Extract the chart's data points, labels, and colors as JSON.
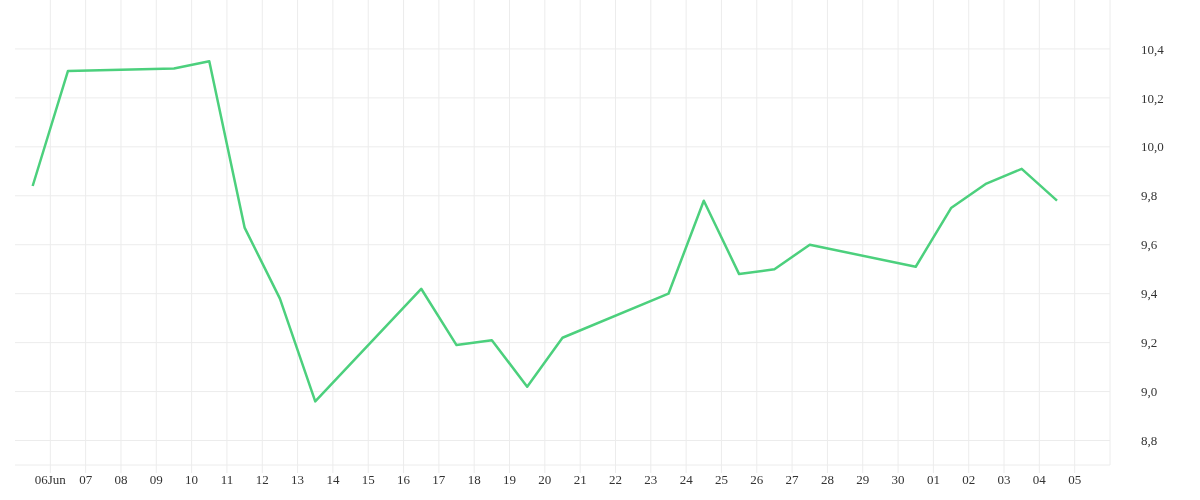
{
  "chart_data": {
    "type": "line",
    "x": [
      "--06-05T12:00",
      "--06-06T12:00",
      "--06-09T12:00",
      "--06-10T12:00",
      "--06-11T12:00",
      "--06-12T12:00",
      "--06-13T12:00",
      "--06-16T12:00",
      "--06-17T12:00",
      "--06-18T12:00",
      "--06-19T12:00",
      "--06-20T12:00",
      "--06-23T12:00",
      "--06-24T12:00",
      "--06-25T12:00",
      "--06-26T12:00",
      "--06-27T12:00",
      "--06-30T12:00",
      "--07-01T12:00",
      "--07-02T12:00",
      "--07-03T12:00",
      "--07-04T12:00"
    ],
    "series": [
      {
        "color": "#4cd07d",
        "values": [
          9.84,
          10.31,
          10.32,
          10.35,
          9.67,
          9.38,
          8.96,
          9.42,
          9.19,
          9.21,
          9.02,
          9.22,
          9.4,
          9.78,
          9.48,
          9.5,
          9.6,
          9.51,
          9.75,
          9.85,
          9.91,
          9.78
        ]
      }
    ],
    "xlim": [
      "--06-05",
      "--07-06"
    ],
    "xticks": [
      {
        "value": "--06-06",
        "label": "06Jun"
      },
      {
        "value": "--06-07",
        "label": "07"
      },
      {
        "value": "--06-08",
        "label": "08"
      },
      {
        "value": "--06-09",
        "label": "09"
      },
      {
        "value": "--06-10",
        "label": "10"
      },
      {
        "value": "--06-11",
        "label": "11"
      },
      {
        "value": "--06-12",
        "label": "12"
      },
      {
        "value": "--06-13",
        "label": "13"
      },
      {
        "value": "--06-14",
        "label": "14"
      },
      {
        "value": "--06-15",
        "label": "15"
      },
      {
        "value": "--06-16",
        "label": "16"
      },
      {
        "value": "--06-17",
        "label": "17"
      },
      {
        "value": "--06-18",
        "label": "18"
      },
      {
        "value": "--06-19",
        "label": "19"
      },
      {
        "value": "--06-20",
        "label": "20"
      },
      {
        "value": "--06-21",
        "label": "21"
      },
      {
        "value": "--06-22",
        "label": "22"
      },
      {
        "value": "--06-23",
        "label": "23"
      },
      {
        "value": "--06-24",
        "label": "24"
      },
      {
        "value": "--06-25",
        "label": "25"
      },
      {
        "value": "--06-26",
        "label": "26"
      },
      {
        "value": "--06-27",
        "label": "27"
      },
      {
        "value": "--06-28",
        "label": "28"
      },
      {
        "value": "--06-29",
        "label": "29"
      },
      {
        "value": "--06-30",
        "label": "30"
      },
      {
        "value": "--07-01",
        "label": "01"
      },
      {
        "value": "--07-02",
        "label": "02"
      },
      {
        "value": "--07-03",
        "label": "03"
      },
      {
        "value": "--07-04",
        "label": "04"
      },
      {
        "value": "--07-05",
        "label": "05"
      }
    ],
    "ylim": [
      8.7,
      10.6
    ],
    "yticks": [
      {
        "value": 8.8,
        "label": "8,8"
      },
      {
        "value": 9.0,
        "label": "9,0"
      },
      {
        "value": 9.2,
        "label": "9,2"
      },
      {
        "value": 9.4,
        "label": "9,4"
      },
      {
        "value": 9.6,
        "label": "9,6"
      },
      {
        "value": 9.8,
        "label": "9,8"
      },
      {
        "value": 10.0,
        "label": "10,0"
      },
      {
        "value": 10.2,
        "label": "10,2"
      },
      {
        "value": 10.4,
        "label": "10,4"
      }
    ],
    "grid": true,
    "legend": false,
    "marker": "none",
    "line_style": "solid"
  }
}
